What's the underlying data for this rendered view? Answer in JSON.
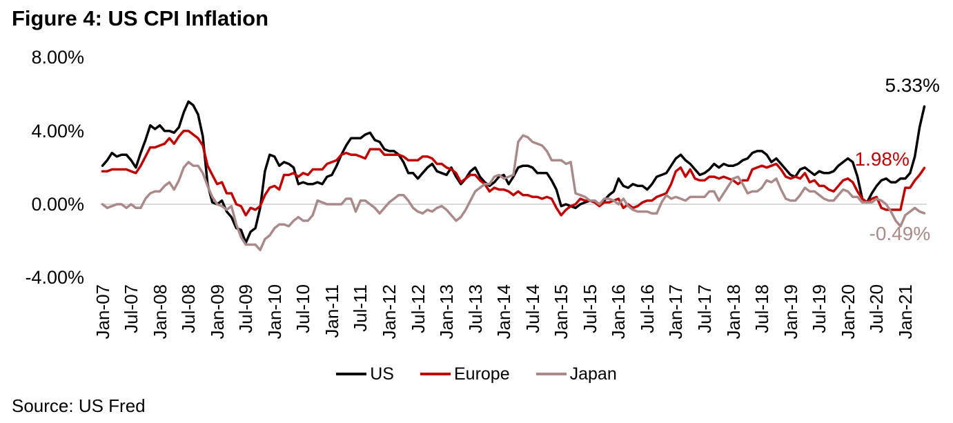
{
  "figure": {
    "source": "Source: US Fred"
  },
  "chart_data": {
    "type": "line",
    "title": "Figure 4: US CPI Inflation",
    "xlabel": "",
    "ylabel": "",
    "ylim": [
      -4,
      8
    ],
    "y_ticks": [
      {
        "label": "8.00%",
        "value": 8
      },
      {
        "label": "4.00%",
        "value": 4
      },
      {
        "label": "0.00%",
        "value": 0
      },
      {
        "label": "-4.00%",
        "value": -4
      }
    ],
    "x_frequency": "monthly",
    "x_tick_labels": [
      "Jan-07",
      "Jul-07",
      "Jan-08",
      "Jul-08",
      "Jan-09",
      "Jul-09",
      "Jan-10",
      "Jul-10",
      "Jan-11",
      "Jul-11",
      "Jan-12",
      "Jul-12",
      "Jan-13",
      "Jul-13",
      "Jan-14",
      "Jul-14",
      "Jan-15",
      "Jul-15",
      "Jan-16",
      "Jul-16",
      "Jan-17",
      "Jul-17",
      "Jan-18",
      "Jul-18",
      "Jan-19",
      "Jul-19",
      "Jan-20",
      "Jul-20",
      "Jan-21"
    ],
    "grid": "zero-line-only",
    "gridline_color": "#D9D9D9",
    "legend_position": "bottom",
    "series": [
      {
        "name": "US",
        "color": "#000000",
        "end_label": "5.33%",
        "values": [
          2.1,
          2.4,
          2.8,
          2.6,
          2.7,
          2.7,
          2.4,
          2.0,
          2.8,
          3.5,
          4.3,
          4.1,
          4.3,
          4.0,
          4.0,
          3.9,
          4.2,
          5.0,
          5.6,
          5.4,
          4.9,
          3.7,
          1.1,
          0.1,
          0.0,
          0.2,
          -0.4,
          -0.7,
          -1.3,
          -1.4,
          -2.1,
          -1.5,
          -1.3,
          -0.2,
          1.8,
          2.7,
          2.6,
          2.1,
          2.3,
          2.2,
          2.0,
          1.1,
          1.2,
          1.1,
          1.1,
          1.2,
          1.1,
          1.5,
          1.6,
          2.1,
          2.7,
          3.2,
          3.6,
          3.6,
          3.6,
          3.8,
          3.9,
          3.5,
          3.4,
          3.0,
          2.9,
          2.9,
          2.7,
          2.3,
          1.7,
          1.7,
          1.4,
          1.7,
          2.0,
          2.2,
          1.8,
          1.7,
          1.6,
          2.0,
          1.5,
          1.1,
          1.4,
          1.8,
          2.0,
          1.5,
          1.2,
          1.0,
          1.2,
          1.5,
          1.6,
          1.1,
          1.5,
          2.0,
          2.1,
          2.1,
          2.0,
          1.7,
          1.7,
          1.7,
          1.3,
          0.8,
          -0.1,
          0.0,
          -0.1,
          -0.2,
          0.0,
          0.1,
          0.2,
          0.2,
          0.0,
          0.2,
          0.5,
          0.7,
          1.4,
          1.0,
          0.9,
          1.1,
          1.0,
          1.0,
          0.8,
          1.1,
          1.5,
          1.6,
          1.7,
          2.1,
          2.5,
          2.7,
          2.4,
          2.2,
          1.9,
          1.6,
          1.7,
          1.9,
          2.2,
          2.0,
          2.2,
          2.1,
          2.1,
          2.2,
          2.4,
          2.5,
          2.8,
          2.9,
          2.9,
          2.7,
          2.3,
          2.5,
          2.2,
          1.9,
          1.6,
          1.5,
          1.9,
          2.0,
          1.8,
          1.6,
          1.8,
          1.7,
          1.7,
          1.8,
          2.1,
          2.3,
          2.5,
          2.3,
          1.5,
          0.3,
          0.1,
          0.6,
          1.0,
          1.3,
          1.4,
          1.2,
          1.2,
          1.4,
          1.4,
          1.7,
          2.6,
          4.2,
          5.33
        ]
      },
      {
        "name": "Europe",
        "color": "#C00000",
        "end_label": "1.98%",
        "values": [
          1.8,
          1.8,
          1.9,
          1.9,
          1.9,
          1.9,
          1.8,
          1.7,
          2.1,
          2.6,
          3.1,
          3.1,
          3.2,
          3.3,
          3.6,
          3.3,
          3.7,
          4.0,
          4.0,
          3.8,
          3.6,
          3.2,
          2.1,
          1.6,
          1.1,
          1.2,
          0.6,
          0.6,
          0.0,
          -0.1,
          -0.6,
          -0.2,
          -0.3,
          -0.1,
          0.5,
          0.9,
          1.0,
          0.8,
          1.6,
          1.6,
          1.7,
          1.5,
          1.7,
          1.6,
          1.9,
          1.9,
          1.9,
          2.2,
          2.3,
          2.4,
          2.7,
          2.8,
          2.7,
          2.7,
          2.6,
          2.5,
          3.0,
          3.0,
          3.0,
          2.7,
          2.7,
          2.7,
          2.7,
          2.6,
          2.4,
          2.4,
          2.4,
          2.6,
          2.6,
          2.5,
          2.2,
          2.2,
          2.0,
          1.9,
          1.7,
          1.2,
          1.4,
          1.6,
          1.6,
          1.3,
          1.1,
          0.7,
          0.9,
          0.8,
          0.8,
          0.7,
          0.5,
          0.7,
          0.5,
          0.5,
          0.4,
          0.4,
          0.3,
          0.4,
          0.3,
          -0.2,
          -0.6,
          -0.3,
          -0.1,
          0.0,
          0.3,
          0.2,
          0.2,
          0.1,
          -0.1,
          0.1,
          0.1,
          0.2,
          0.3,
          -0.2,
          0.0,
          -0.2,
          -0.1,
          0.1,
          0.2,
          0.2,
          0.4,
          0.5,
          0.6,
          1.1,
          1.8,
          2.0,
          1.5,
          1.9,
          1.4,
          1.3,
          1.3,
          1.5,
          1.5,
          1.4,
          1.5,
          1.4,
          1.3,
          1.1,
          1.3,
          1.3,
          1.9,
          2.0,
          2.1,
          2.0,
          2.1,
          2.2,
          1.9,
          1.5,
          1.4,
          1.5,
          1.4,
          1.7,
          1.2,
          1.3,
          1.0,
          1.0,
          0.8,
          0.7,
          1.0,
          1.3,
          1.4,
          1.2,
          0.7,
          0.3,
          0.1,
          0.3,
          0.4,
          -0.2,
          -0.3,
          -0.3,
          -0.3,
          -0.3,
          0.9,
          0.9,
          1.3,
          1.6,
          1.98
        ]
      },
      {
        "name": "Japan",
        "color": "#A98A88",
        "end_label": "-0.49%",
        "values": [
          0.0,
          -0.2,
          -0.1,
          0.0,
          0.0,
          -0.2,
          0.0,
          -0.2,
          -0.2,
          0.3,
          0.6,
          0.7,
          0.7,
          1.0,
          1.2,
          0.8,
          1.3,
          2.0,
          2.3,
          2.1,
          2.1,
          1.7,
          1.0,
          0.4,
          0.0,
          -0.1,
          -0.3,
          -0.1,
          -1.1,
          -1.8,
          -2.2,
          -2.2,
          -2.2,
          -2.5,
          -1.9,
          -1.7,
          -1.3,
          -1.1,
          -1.1,
          -1.2,
          -0.9,
          -0.7,
          -0.9,
          -0.9,
          -0.6,
          0.2,
          0.1,
          0.0,
          0.0,
          0.0,
          0.0,
          0.3,
          0.3,
          -0.4,
          0.2,
          0.2,
          0.0,
          -0.2,
          -0.5,
          -0.2,
          0.1,
          0.3,
          0.5,
          0.5,
          0.2,
          -0.2,
          -0.4,
          -0.5,
          -0.3,
          -0.4,
          -0.2,
          -0.1,
          -0.3,
          -0.6,
          -0.9,
          -0.7,
          -0.3,
          0.2,
          0.7,
          0.9,
          1.1,
          1.1,
          1.5,
          1.6,
          1.4,
          1.5,
          1.6,
          3.4,
          3.75,
          3.65,
          3.4,
          3.3,
          3.2,
          2.9,
          2.4,
          2.4,
          2.4,
          2.2,
          2.3,
          0.6,
          0.5,
          0.4,
          0.2,
          0.2,
          0.0,
          0.3,
          0.3,
          0.2,
          0.0,
          0.3,
          -0.1,
          -0.3,
          -0.4,
          -0.4,
          -0.4,
          -0.5,
          -0.5,
          0.1,
          0.5,
          0.3,
          0.4,
          0.3,
          0.2,
          0.4,
          0.4,
          0.4,
          0.4,
          0.7,
          0.7,
          0.2,
          0.6,
          1.0,
          1.4,
          1.5,
          1.1,
          0.6,
          0.7,
          0.7,
          0.9,
          1.3,
          1.2,
          1.4,
          0.8,
          0.3,
          0.2,
          0.2,
          0.5,
          0.9,
          0.7,
          0.7,
          0.5,
          0.3,
          0.2,
          0.2,
          0.5,
          0.8,
          0.7,
          0.4,
          0.4,
          0.1,
          0.1,
          0.1,
          0.3,
          0.2,
          0.0,
          -0.4,
          -0.9,
          -1.2,
          -0.6,
          -0.4,
          -0.2,
          -0.4,
          -0.49
        ]
      }
    ]
  }
}
